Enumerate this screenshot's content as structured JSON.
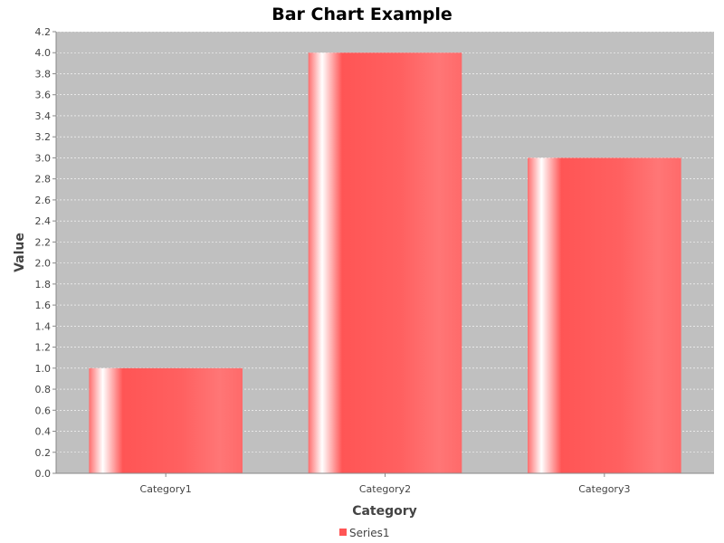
{
  "chart_data": {
    "type": "bar",
    "title": "Bar Chart Example",
    "xlabel": "Category",
    "ylabel": "Value",
    "categories": [
      "Category1",
      "Category2",
      "Category3"
    ],
    "series": [
      {
        "name": "Series1",
        "values": [
          1.0,
          4.0,
          3.0
        ],
        "color": "#ff5555"
      }
    ],
    "ylim": [
      0,
      4.2
    ],
    "y_ticks": [
      "0.0",
      "0.2",
      "0.4",
      "0.6",
      "0.8",
      "1.0",
      "1.2",
      "1.4",
      "1.6",
      "1.8",
      "2.0",
      "2.2",
      "2.4",
      "2.6",
      "2.8",
      "3.0",
      "3.2",
      "3.4",
      "3.6",
      "3.8",
      "4.0",
      "4.2"
    ],
    "grid": true,
    "legend_position": "bottom-center",
    "plot_background": "#c0c0c0"
  }
}
